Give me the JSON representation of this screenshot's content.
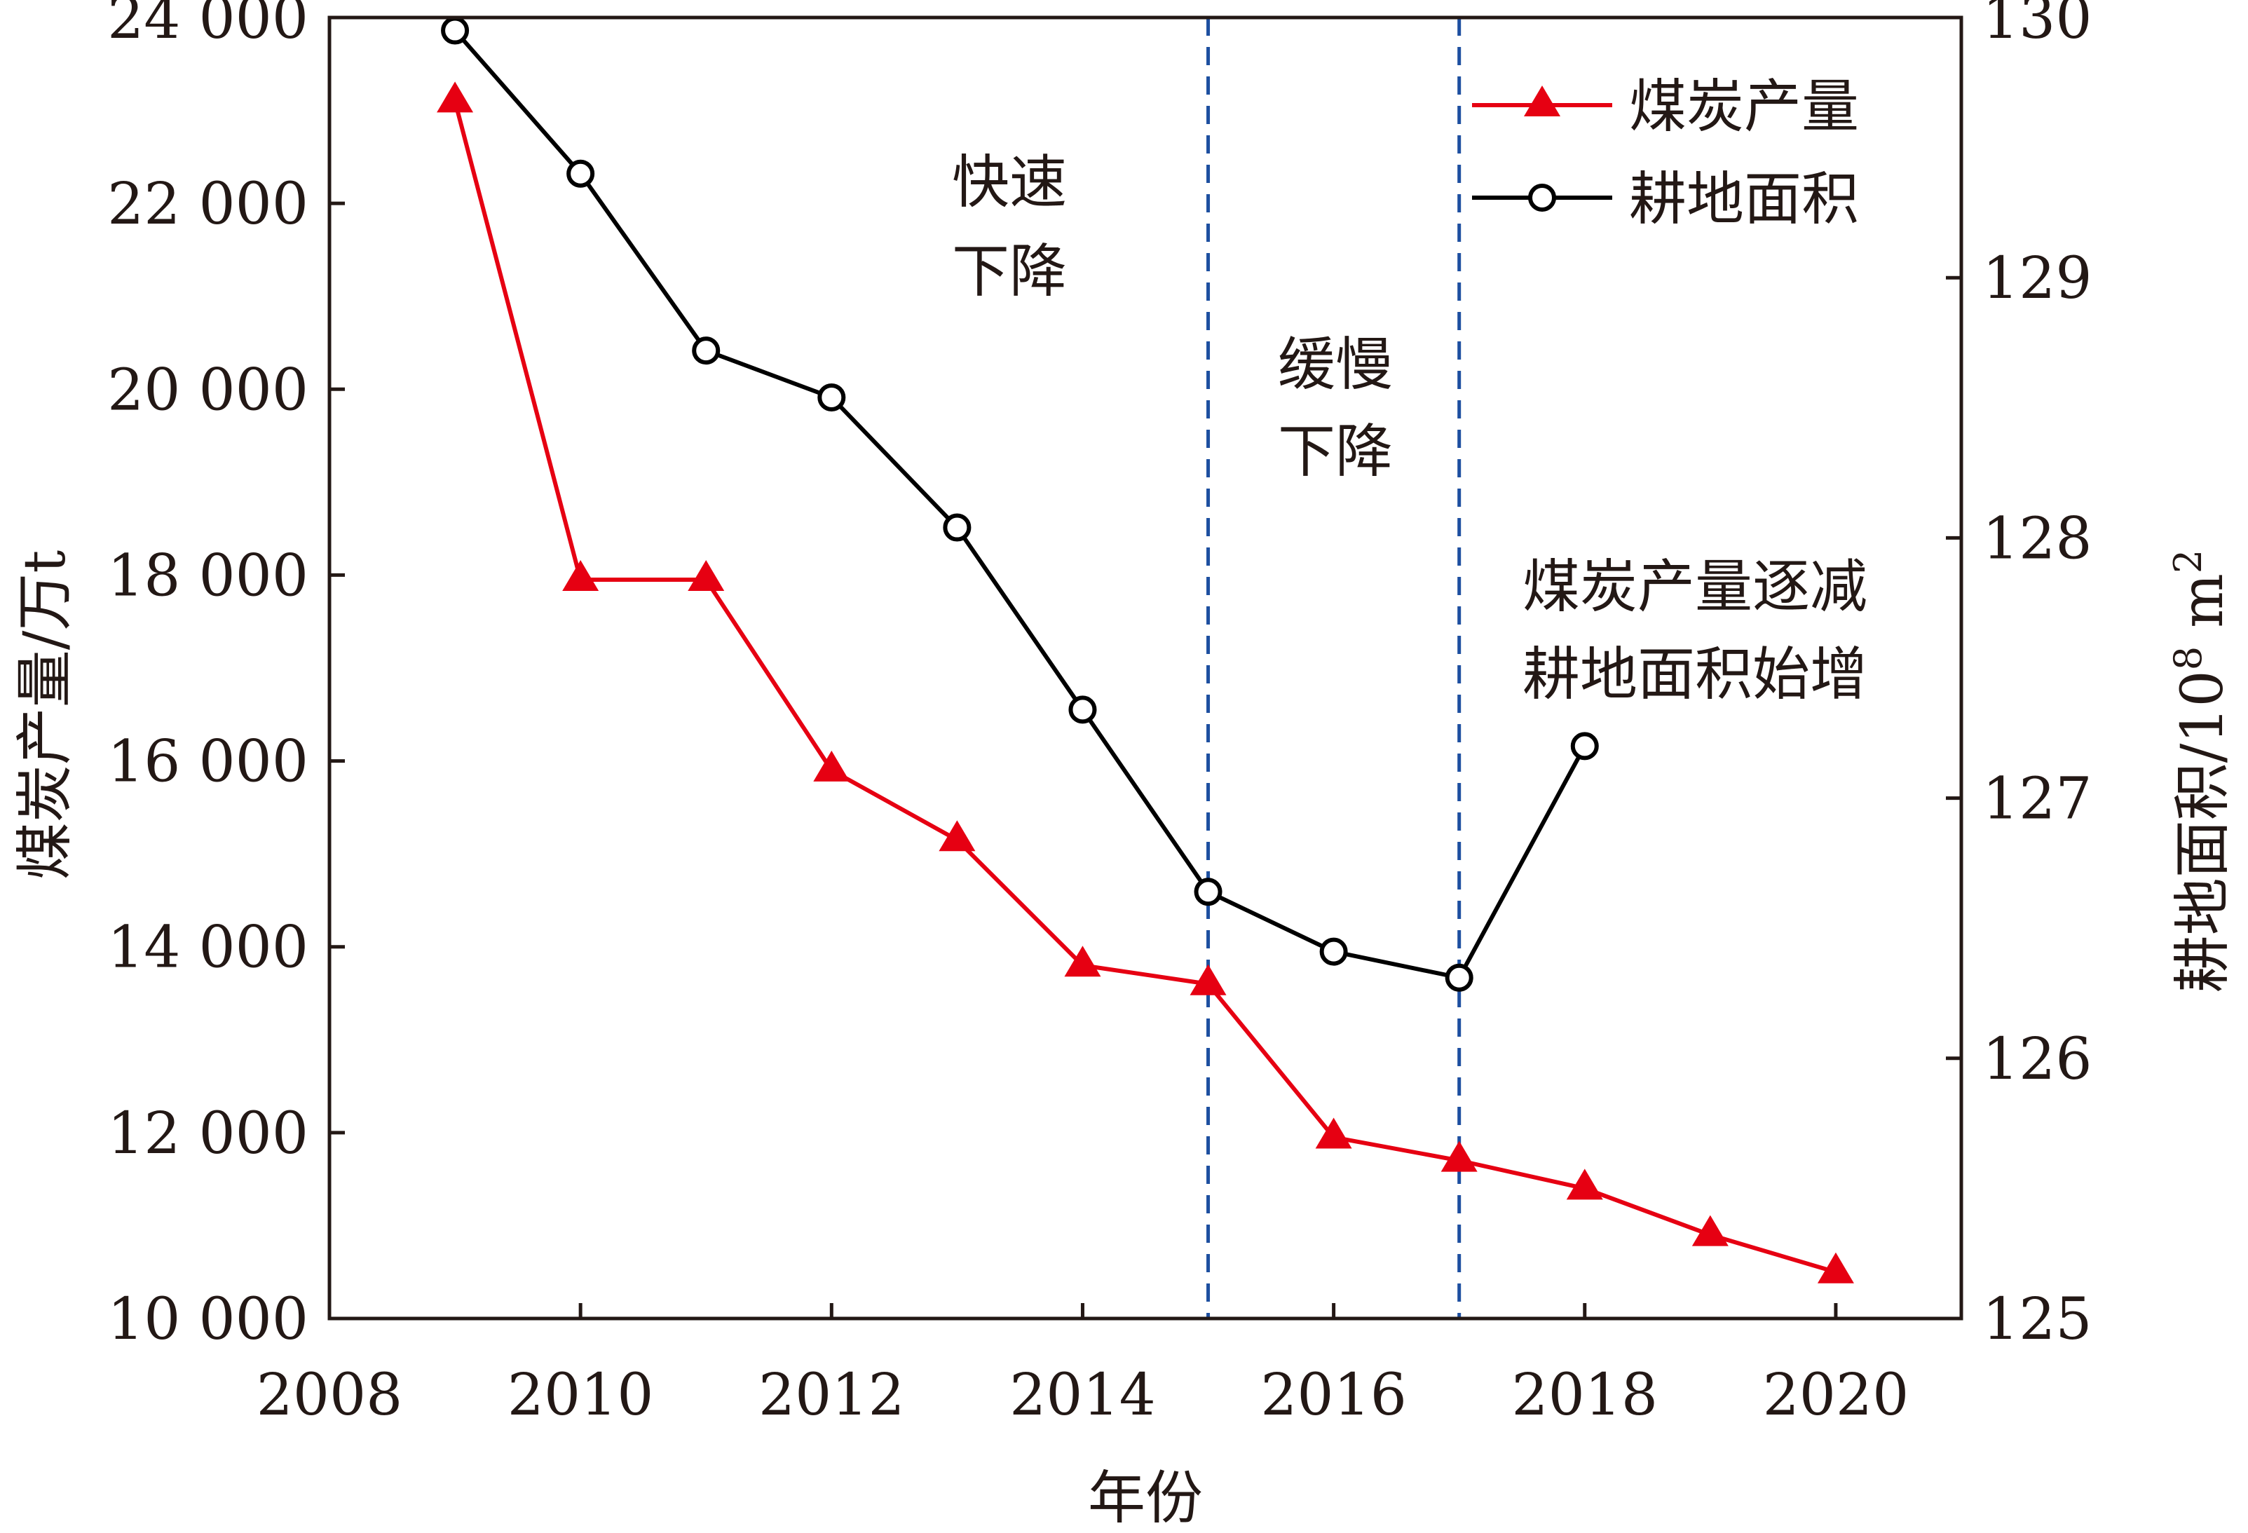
{
  "chart_data": {
    "type": "line",
    "x": [
      2009,
      2010,
      2011,
      2012,
      2013,
      2014,
      2015,
      2016,
      2017,
      2018,
      2019,
      2020
    ],
    "xlabel": "年份",
    "xlim": [
      2008,
      2021
    ],
    "xticks": [
      2008,
      2010,
      2012,
      2014,
      2016,
      2018,
      2020
    ],
    "xtick_labels": [
      "2008",
      "2010",
      "2012",
      "2014",
      "2016",
      "2018",
      "2020"
    ],
    "ylabel_left": "煤炭产量/万t",
    "ylim_left": [
      10000,
      24000
    ],
    "yticks_left": [
      10000,
      12000,
      14000,
      16000,
      18000,
      20000,
      22000,
      24000
    ],
    "ytick_labels_left": [
      "10 000",
      "12 000",
      "14 000",
      "16 000",
      "18 000",
      "20 000",
      "22 000",
      "24 000"
    ],
    "ylabel_right": {
      "main": "耕地面积/10",
      "sup": "8",
      "unit": " m",
      "unit_sup": "2"
    },
    "ylim_right": [
      125,
      130
    ],
    "yticks_right": [
      125,
      126,
      127,
      128,
      129,
      130
    ],
    "ytick_labels_right": [
      "125",
      "126",
      "127",
      "128",
      "129",
      "130"
    ],
    "series": [
      {
        "name": "煤炭产量",
        "axis": "left",
        "color": "#e60012",
        "marker": "triangle",
        "x": [
          2009,
          2010,
          2011,
          2012,
          2013,
          2014,
          2015,
          2016,
          2017,
          2018,
          2019,
          2020
        ],
        "values": [
          23100,
          17950,
          17950,
          15900,
          15150,
          13800,
          13600,
          11950,
          11700,
          11400,
          10900,
          10500
        ]
      },
      {
        "name": "耕地面积",
        "axis": "right",
        "color": "#000000",
        "marker": "open-circle",
        "x": [
          2009,
          2010,
          2011,
          2012,
          2013,
          2014,
          2015,
          2016,
          2017,
          2018
        ],
        "values": [
          129.95,
          129.4,
          128.72,
          128.54,
          128.04,
          127.34,
          126.64,
          126.41,
          126.31,
          127.2
        ]
      }
    ],
    "vlines": [
      {
        "x": 2015,
        "color": "#1d4fa0",
        "style": "dashed"
      },
      {
        "x": 2017,
        "color": "#1d4fa0",
        "style": "dashed"
      }
    ],
    "annotations": [
      {
        "id": "rapid",
        "lines": [
          "快速",
          "下降"
        ]
      },
      {
        "id": "slow",
        "lines": [
          "缓慢",
          "下降"
        ]
      },
      {
        "id": "change",
        "lines": [
          "煤炭产量逐减",
          "耕地面积始增"
        ]
      }
    ],
    "legend_position": "top-right",
    "grid": false
  }
}
